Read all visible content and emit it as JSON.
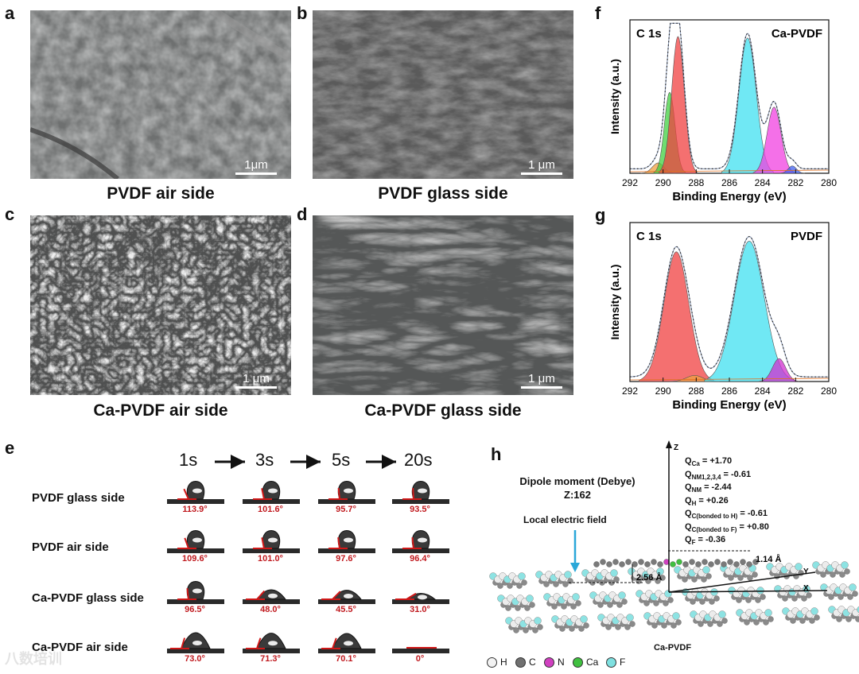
{
  "panels": {
    "a": {
      "label": "a",
      "caption": "PVDF air side",
      "scale": "1μm"
    },
    "b": {
      "label": "b",
      "caption": "PVDF glass side",
      "scale": "1 μm"
    },
    "c": {
      "label": "c",
      "caption": "Ca-PVDF air side",
      "scale": "1 μm"
    },
    "d": {
      "label": "d",
      "caption": "Ca-PVDF glass side",
      "scale": "1 μm"
    },
    "e": {
      "label": "e"
    },
    "f": {
      "label": "f"
    },
    "g": {
      "label": "g"
    },
    "h": {
      "label": "h"
    }
  },
  "contact_angle": {
    "times": [
      "1s",
      "3s",
      "5s",
      "20s"
    ],
    "rows": [
      {
        "name": "PVDF glass side",
        "angles": [
          "113.9°",
          "101.6°",
          "95.7°",
          "93.5°"
        ]
      },
      {
        "name": "PVDF air side",
        "angles": [
          "109.6°",
          "101.0°",
          "97.6°",
          "96.4°"
        ]
      },
      {
        "name": "Ca-PVDF glass side",
        "angles": [
          "96.5°",
          "48.0°",
          "45.5°",
          "31.0°"
        ]
      },
      {
        "name": "Ca-PVDF air side",
        "angles": [
          "73.0°",
          "71.3°",
          "70.1°",
          "0°"
        ]
      }
    ]
  },
  "chart_data": [
    {
      "type": "line",
      "panel": "f",
      "title": "C 1s",
      "label": "Ca-PVDF",
      "xlabel": "Binding Energy (eV)",
      "ylabel": "Intensity (a.u.)",
      "xlim": [
        292,
        280
      ],
      "x_ticks": [
        "292",
        "290",
        "288",
        "286",
        "284",
        "282",
        "280"
      ],
      "series": [
        {
          "center": 290.3,
          "height": 0.07,
          "width": 0.35,
          "color": "#f0a040"
        },
        {
          "center": 289.6,
          "height": 0.55,
          "width": 0.32,
          "color": "#40d040"
        },
        {
          "center": 289.1,
          "height": 0.93,
          "width": 0.38,
          "color": "#f04040"
        },
        {
          "center": 284.9,
          "height": 0.92,
          "width": 0.52,
          "color": "#40e0f0"
        },
        {
          "center": 283.3,
          "height": 0.45,
          "width": 0.42,
          "color": "#f040e0"
        },
        {
          "center": 282.2,
          "height": 0.05,
          "width": 0.25,
          "color": "#4060f0"
        }
      ]
    },
    {
      "type": "line",
      "panel": "g",
      "title": "C 1s",
      "label": "PVDF",
      "xlabel": "Binding Energy (eV)",
      "ylabel": "Intensity (a.u.)",
      "xlim": [
        292,
        280
      ],
      "x_ticks": [
        "292",
        "290",
        "288",
        "286",
        "284",
        "282",
        "280"
      ],
      "series": [
        {
          "center": 289.2,
          "height": 0.85,
          "width": 0.75,
          "color": "#f04040"
        },
        {
          "center": 288.1,
          "height": 0.04,
          "width": 0.5,
          "color": "#f0a040"
        },
        {
          "center": 284.8,
          "height": 0.92,
          "width": 0.9,
          "color": "#40e0f0"
        },
        {
          "center": 283.0,
          "height": 0.15,
          "width": 0.4,
          "color": "#d030d0"
        }
      ]
    }
  ],
  "dipole": {
    "title": "Dipole moment (Debye)",
    "z_value": "Z:162",
    "field_label": "Local electric field",
    "d1": "2.56 Å",
    "d2": "1.14 Å",
    "axis_z": "Z",
    "axis_y": "Y",
    "axis_x": "X",
    "substrate_label": "Ca-PVDF",
    "charges": [
      {
        "sym": "Q",
        "sub": "Ca",
        "val": " = +1.70"
      },
      {
        "sym": "Q",
        "sub": "NM1,2,3,4",
        "val": " = -0.61"
      },
      {
        "sym": "Q",
        "sub": "NM",
        "val": " = -2.44"
      },
      {
        "sym": "Q",
        "sub": "H",
        "val": " = +0.26"
      },
      {
        "sym": "Q",
        "sub": "C(bonded to H)",
        "val": " = -0.61"
      },
      {
        "sym": "Q",
        "sub": "C(bonded to F)",
        "val": " = +0.80"
      },
      {
        "sym": "Q",
        "sub": "F",
        "val": " = -0.36"
      }
    ],
    "legend": [
      {
        "name": "H",
        "color": "#f2f2f2"
      },
      {
        "name": "C",
        "color": "#707070"
      },
      {
        "name": "N",
        "color": "#d040c0"
      },
      {
        "name": "Ca",
        "color": "#40c040"
      },
      {
        "name": "F",
        "color": "#7fe0e0"
      }
    ]
  },
  "watermark": "八数培训"
}
